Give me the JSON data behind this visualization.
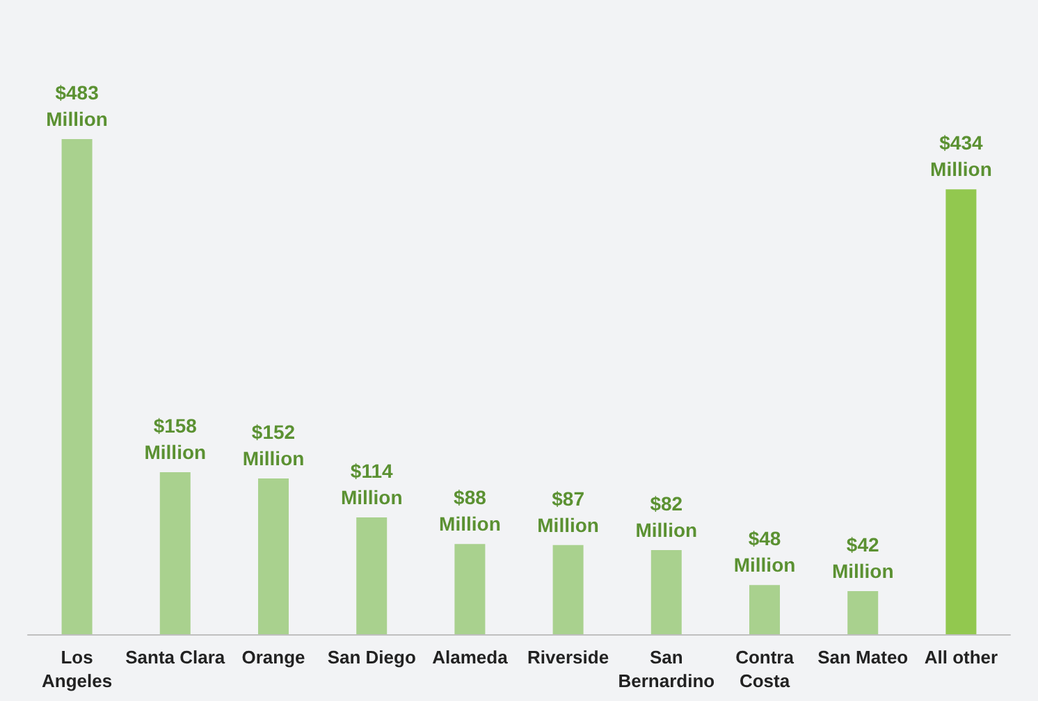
{
  "chart_data": {
    "type": "bar",
    "categories": [
      "Los\nAngeles",
      "Santa Clara",
      "Orange",
      "San Diego",
      "Alameda",
      "Riverside",
      "San\nBernardino",
      "Contra\nCosta",
      "San Mateo",
      "All other"
    ],
    "values": [
      483,
      158,
      152,
      114,
      88,
      87,
      82,
      48,
      42,
      434
    ],
    "colors": [
      "#a9d18e",
      "#a9d18e",
      "#a9d18e",
      "#a9d18e",
      "#a9d18e",
      "#a9d18e",
      "#a9d18e",
      "#a9d18e",
      "#a9d18e",
      "#92c84f"
    ],
    "value_labels": [
      "$483\nMillion",
      "$158\nMillion",
      "$152\nMillion",
      "$114\nMillion",
      "$88\nMillion",
      "$87\nMillion",
      "$82\nMillion",
      "$48\nMillion",
      "$42\nMillion",
      "$434\nMillion"
    ],
    "grid": false
  }
}
